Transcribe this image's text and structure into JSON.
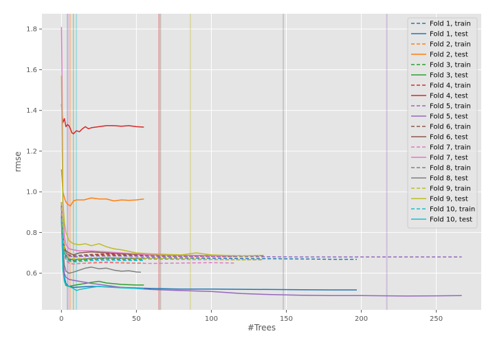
{
  "chart_data": {
    "type": "line",
    "title": "",
    "xlabel": "#Trees",
    "ylabel": "rmse",
    "xlim": [
      -13,
      280
    ],
    "ylim": [
      0.42,
      1.875
    ],
    "xticks": [
      0,
      50,
      100,
      150,
      200,
      250
    ],
    "yticks": [
      0.6,
      0.8,
      1.0,
      1.2,
      1.4,
      1.6,
      1.8
    ],
    "xtick_labels": [
      "0",
      "50",
      "100",
      "150",
      "200",
      "250"
    ],
    "ytick_labels": [
      "0.6",
      "0.8",
      "1.0",
      "1.2",
      "1.4",
      "1.6",
      "1.8"
    ],
    "grid": true,
    "style": "ggplot",
    "legend_position": "top-right",
    "vlines": [
      {
        "x": 4,
        "color": "#1f77b4"
      },
      {
        "x": 6,
        "color": "#ff7f0e"
      },
      {
        "x": 8,
        "color": "#2ca02c"
      },
      {
        "x": 65,
        "color": "#d62728"
      },
      {
        "x": 217,
        "color": "#9467bd"
      },
      {
        "x": 66,
        "color": "#8c564b"
      },
      {
        "x": 5,
        "color": "#e377c2"
      },
      {
        "x": 148,
        "color": "#7f7f7f"
      },
      {
        "x": 86,
        "color": "#bcbd22"
      },
      {
        "x": 10,
        "color": "#17becf"
      }
    ],
    "series": [
      {
        "name": "Fold 1, train",
        "color": "#1f77b4",
        "dash": true,
        "x": [
          0,
          1,
          2,
          3,
          5,
          8,
          12,
          20,
          30,
          40,
          60,
          80,
          100,
          120,
          140,
          160,
          180,
          197
        ],
        "y": [
          0.93,
          0.78,
          0.72,
          0.69,
          0.67,
          0.665,
          0.668,
          0.672,
          0.675,
          0.674,
          0.676,
          0.675,
          0.674,
          0.672,
          0.671,
          0.67,
          0.668,
          0.668
        ]
      },
      {
        "name": "Fold 1, test",
        "color": "#1f77b4",
        "dash": false,
        "x": [
          0,
          1,
          2,
          3,
          5,
          8,
          12,
          20,
          30,
          40,
          60,
          80,
          100,
          120,
          140,
          160,
          180,
          197
        ],
        "y": [
          0.88,
          0.66,
          0.58,
          0.55,
          0.535,
          0.53,
          0.532,
          0.535,
          0.533,
          0.53,
          0.525,
          0.522,
          0.522,
          0.521,
          0.52,
          0.519,
          0.518,
          0.518
        ]
      },
      {
        "name": "Fold 2, train",
        "color": "#ff7f0e",
        "dash": true,
        "x": [
          0,
          1,
          2,
          3,
          5,
          8,
          12,
          20,
          30,
          40,
          50,
          55
        ],
        "y": [
          0.9,
          0.76,
          0.7,
          0.67,
          0.65,
          0.645,
          0.648,
          0.652,
          0.655,
          0.652,
          0.65,
          0.65
        ]
      },
      {
        "name": "Fold 2, test",
        "color": "#ff7f0e",
        "dash": false,
        "x": [
          0,
          1,
          2,
          3,
          4,
          5,
          6,
          8,
          10,
          15,
          20,
          25,
          30,
          35,
          40,
          45,
          50,
          55
        ],
        "y": [
          1.11,
          1.0,
          0.97,
          0.95,
          0.94,
          0.935,
          0.93,
          0.955,
          0.96,
          0.96,
          0.97,
          0.965,
          0.965,
          0.955,
          0.96,
          0.958,
          0.96,
          0.965
        ]
      },
      {
        "name": "Fold 3, train",
        "color": "#2ca02c",
        "dash": true,
        "x": [
          0,
          1,
          2,
          3,
          5,
          8,
          12,
          20,
          30,
          40,
          55
        ],
        "y": [
          0.88,
          0.75,
          0.7,
          0.68,
          0.665,
          0.66,
          0.662,
          0.668,
          0.67,
          0.668,
          0.668
        ]
      },
      {
        "name": "Fold 3, test",
        "color": "#2ca02c",
        "dash": false,
        "x": [
          0,
          1,
          2,
          3,
          5,
          8,
          12,
          20,
          25,
          30,
          40,
          50,
          55
        ],
        "y": [
          0.86,
          0.62,
          0.56,
          0.54,
          0.535,
          0.54,
          0.545,
          0.555,
          0.56,
          0.552,
          0.545,
          0.542,
          0.542
        ]
      },
      {
        "name": "Fold 4, train",
        "color": "#d62728",
        "dash": true,
        "x": [
          0,
          1,
          2,
          3,
          5,
          8,
          12,
          20,
          30,
          40,
          60,
          80,
          100,
          115
        ],
        "y": [
          0.95,
          0.8,
          0.73,
          0.7,
          0.685,
          0.68,
          0.682,
          0.688,
          0.69,
          0.688,
          0.685,
          0.683,
          0.682,
          0.682
        ]
      },
      {
        "name": "Fold 4, test",
        "color": "#d62728",
        "dash": false,
        "x": [
          0,
          1,
          2,
          3,
          4,
          5,
          6,
          7,
          8,
          10,
          12,
          14,
          16,
          18,
          20,
          25,
          30,
          35,
          40,
          45,
          50,
          55
        ],
        "y": [
          1.43,
          1.34,
          1.36,
          1.32,
          1.33,
          1.325,
          1.31,
          1.29,
          1.285,
          1.3,
          1.295,
          1.31,
          1.32,
          1.31,
          1.315,
          1.32,
          1.325,
          1.325,
          1.322,
          1.325,
          1.32,
          1.318
        ]
      },
      {
        "name": "Fold 5, train",
        "color": "#9467bd",
        "dash": true,
        "x": [
          0,
          1,
          2,
          3,
          5,
          8,
          12,
          20,
          40,
          60,
          80,
          100,
          130,
          160,
          200,
          230,
          267
        ],
        "y": [
          0.92,
          0.78,
          0.72,
          0.7,
          0.685,
          0.68,
          0.682,
          0.684,
          0.684,
          0.683,
          0.682,
          0.682,
          0.681,
          0.68,
          0.68,
          0.68,
          0.68
        ]
      },
      {
        "name": "Fold 5, test",
        "color": "#9467bd",
        "dash": false,
        "x": [
          0,
          1,
          2,
          3,
          5,
          8,
          12,
          20,
          40,
          60,
          80,
          100,
          120,
          140,
          160,
          180,
          200,
          230,
          267
        ],
        "y": [
          0.89,
          0.68,
          0.6,
          0.58,
          0.57,
          0.565,
          0.56,
          0.55,
          0.53,
          0.52,
          0.515,
          0.51,
          0.5,
          0.495,
          0.492,
          0.49,
          0.49,
          0.488,
          0.49
        ]
      },
      {
        "name": "Fold 6, train",
        "color": "#8c564b",
        "dash": true,
        "x": [
          0,
          1,
          2,
          3,
          5,
          8,
          12,
          20,
          30,
          40,
          60,
          80,
          100,
          120,
          135
        ],
        "y": [
          0.93,
          0.79,
          0.73,
          0.7,
          0.69,
          0.685,
          0.688,
          0.692,
          0.695,
          0.693,
          0.69,
          0.688,
          0.687,
          0.686,
          0.686
        ]
      },
      {
        "name": "Fold 6, test",
        "color": "#8c564b",
        "dash": false,
        "x": [
          0,
          1,
          2,
          3,
          5,
          8,
          12,
          20,
          30,
          40,
          60,
          80,
          100,
          115
        ],
        "y": [
          0.93,
          0.78,
          0.73,
          0.71,
          0.7,
          0.69,
          0.7,
          0.705,
          0.7,
          0.695,
          0.69,
          0.688,
          0.686,
          0.685
        ]
      },
      {
        "name": "Fold 7, train",
        "color": "#e377c2",
        "dash": true,
        "x": [
          0,
          1,
          2,
          3,
          5,
          8,
          12,
          20,
          30,
          40,
          60,
          80,
          100,
          115
        ],
        "y": [
          0.9,
          0.75,
          0.69,
          0.665,
          0.65,
          0.645,
          0.648,
          0.65,
          0.652,
          0.65,
          0.648,
          0.65,
          0.652,
          0.65
        ]
      },
      {
        "name": "Fold 7, test",
        "color": "#e377c2",
        "dash": false,
        "x": [
          0,
          0.5,
          1,
          2,
          3,
          5,
          8,
          12,
          20,
          30,
          40,
          50,
          60,
          80,
          100,
          115
        ],
        "y": [
          1.81,
          1.5,
          0.95,
          0.78,
          0.74,
          0.72,
          0.715,
          0.71,
          0.71,
          0.705,
          0.7,
          0.695,
          0.69,
          0.688,
          0.686,
          0.686
        ]
      },
      {
        "name": "Fold 8, train",
        "color": "#7f7f7f",
        "dash": true,
        "x": [
          0,
          1,
          2,
          3,
          5,
          8,
          12,
          20,
          30,
          40,
          60,
          80,
          100,
          120,
          135
        ],
        "y": [
          0.92,
          0.77,
          0.71,
          0.685,
          0.67,
          0.665,
          0.668,
          0.672,
          0.675,
          0.673,
          0.67,
          0.668,
          0.667,
          0.666,
          0.666
        ]
      },
      {
        "name": "Fold 8, test",
        "color": "#7f7f7f",
        "dash": false,
        "x": [
          0,
          1,
          2,
          3,
          5,
          8,
          12,
          16,
          20,
          25,
          30,
          35,
          40,
          45,
          50,
          53
        ],
        "y": [
          0.94,
          0.72,
          0.64,
          0.61,
          0.6,
          0.605,
          0.615,
          0.625,
          0.63,
          0.622,
          0.625,
          0.615,
          0.61,
          0.612,
          0.606,
          0.605
        ]
      },
      {
        "name": "Fold 9, train",
        "color": "#bcbd22",
        "dash": true,
        "x": [
          0,
          1,
          2,
          3,
          5,
          8,
          12,
          20,
          30,
          40,
          60,
          80,
          100,
          120,
          135
        ],
        "y": [
          0.95,
          0.79,
          0.72,
          0.69,
          0.675,
          0.67,
          0.672,
          0.676,
          0.678,
          0.676,
          0.673,
          0.67,
          0.668,
          0.665,
          0.668
        ]
      },
      {
        "name": "Fold 9, test",
        "color": "#bcbd22",
        "dash": false,
        "x": [
          0,
          0.5,
          1,
          2,
          3,
          4,
          5,
          8,
          12,
          16,
          20,
          25,
          30,
          35,
          40,
          50,
          60,
          80,
          90,
          100,
          120,
          135
        ],
        "y": [
          1.57,
          1.2,
          0.95,
          0.85,
          0.8,
          0.78,
          0.76,
          0.745,
          0.74,
          0.745,
          0.735,
          0.745,
          0.73,
          0.72,
          0.715,
          0.7,
          0.695,
          0.69,
          0.7,
          0.69,
          0.685,
          0.688
        ]
      },
      {
        "name": "Fold 10, train",
        "color": "#17becf",
        "dash": true,
        "x": [
          0,
          1,
          2,
          3,
          5,
          8,
          12,
          20,
          30,
          40,
          55
        ],
        "y": [
          0.87,
          0.74,
          0.69,
          0.67,
          0.66,
          0.655,
          0.658,
          0.662,
          0.664,
          0.662,
          0.662
        ]
      },
      {
        "name": "Fold 10, test",
        "color": "#17becf",
        "dash": false,
        "x": [
          0,
          1,
          2,
          3,
          5,
          8,
          10,
          12,
          16,
          20,
          25,
          30,
          40,
          50,
          55
        ],
        "y": [
          0.86,
          0.62,
          0.56,
          0.545,
          0.535,
          0.525,
          0.515,
          0.52,
          0.525,
          0.53,
          0.535,
          0.532,
          0.528,
          0.525,
          0.525
        ]
      }
    ]
  }
}
